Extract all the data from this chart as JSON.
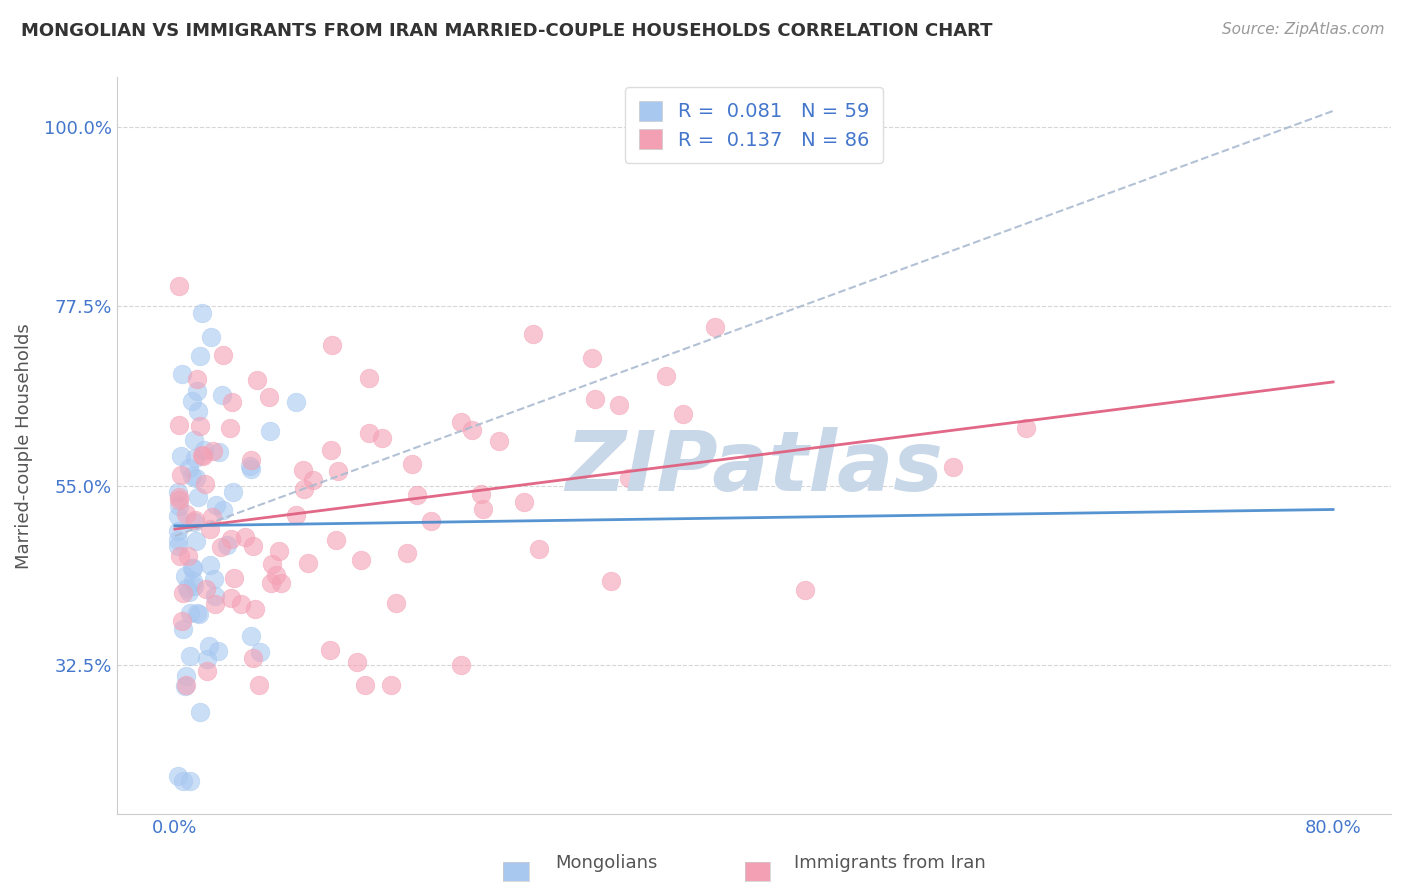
{
  "title": "MONGOLIAN VS IMMIGRANTS FROM IRAN MARRIED-COUPLE HOUSEHOLDS CORRELATION CHART",
  "source": "Source: ZipAtlas.com",
  "ylabel": "Married-couple Households",
  "xlim": [
    0.0,
    0.8
  ],
  "ylim": [
    0.0,
    1.0
  ],
  "xticks": [
    0.0,
    0.8
  ],
  "xticklabels": [
    "0.0%",
    "80.0%"
  ],
  "ytick_positions": [
    0.325,
    0.55,
    0.775,
    1.0
  ],
  "yticklabels": [
    "32.5%",
    "55.0%",
    "77.5%",
    "100.0%"
  ],
  "mongolian_R": 0.081,
  "mongolian_N": 59,
  "iran_R": 0.137,
  "iran_N": 86,
  "mongolian_color": "#a8c8f0",
  "iran_color": "#f4a0b4",
  "mongolian_line_color": "#4488cc",
  "iran_line_color": "#e06080",
  "mongolian_dashed_color": "#aabbd0",
  "background_color": "#ffffff",
  "watermark_color": "#c8d8e8",
  "tick_color": "#4477cc",
  "grid_color": "#cccccc",
  "scatter_size": 180,
  "scatter_alpha": 0.6
}
